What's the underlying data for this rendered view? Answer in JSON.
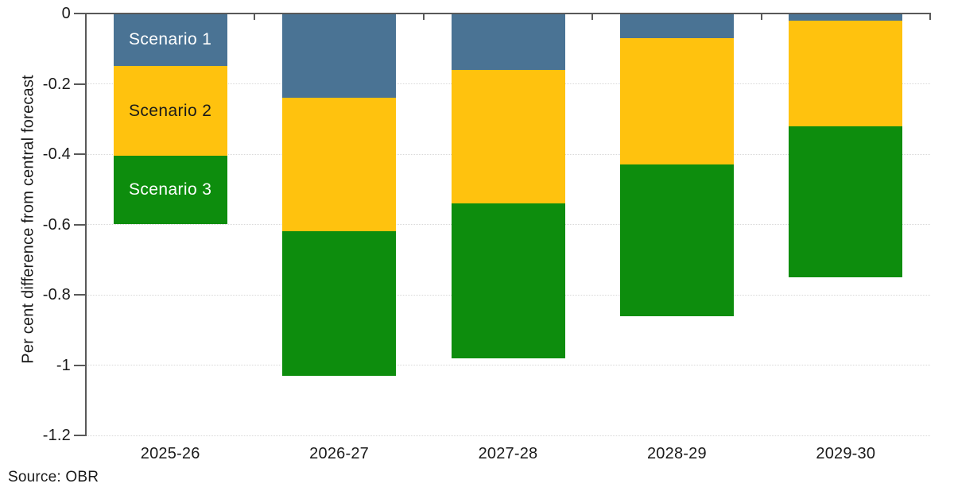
{
  "chart_data": {
    "type": "bar",
    "stacking": "stacked",
    "direction": "negative-from-zero",
    "title": "",
    "xlabel": "",
    "ylabel": "Per cent difference from central forecast",
    "ylim": [
      -1.2,
      0
    ],
    "grid": "horizontal-dotted",
    "legend_position": "labels-inside-first-bar",
    "source": "Source: OBR",
    "categories": [
      "2025-26",
      "2026-27",
      "2027-28",
      "2028-29",
      "2029-30"
    ],
    "yticks": [
      {
        "value": 0,
        "label": "0"
      },
      {
        "value": -0.2,
        "label": "-0.2"
      },
      {
        "value": -0.4,
        "label": "-0.4"
      },
      {
        "value": -0.6,
        "label": "-0.6"
      },
      {
        "value": -0.8,
        "label": "-0.8"
      },
      {
        "value": -1,
        "label": "-1"
      },
      {
        "value": -1.2,
        "label": "-1.2"
      }
    ],
    "series": [
      {
        "name": "Scenario 1",
        "color": "#4A7394",
        "label_text_color": "#FFFFFF",
        "cumulative_to": [
          -0.15,
          -0.24,
          -0.16,
          -0.07,
          -0.02
        ]
      },
      {
        "name": "Scenario 2",
        "color": "#FFC20E",
        "label_text_color": "#1A1A1A",
        "cumulative_to": [
          -0.405,
          -0.62,
          -0.54,
          -0.43,
          -0.32
        ]
      },
      {
        "name": "Scenario 3",
        "color": "#0D8D0D",
        "label_text_color": "#FFFFFF",
        "cumulative_to": [
          -0.6,
          -1.03,
          -0.98,
          -0.86,
          -0.75
        ]
      }
    ]
  },
  "colors": {
    "axis": "#595959",
    "gridline": "#D9D9D9",
    "text": "#1A1A1A",
    "background": "#FFFFFF"
  }
}
